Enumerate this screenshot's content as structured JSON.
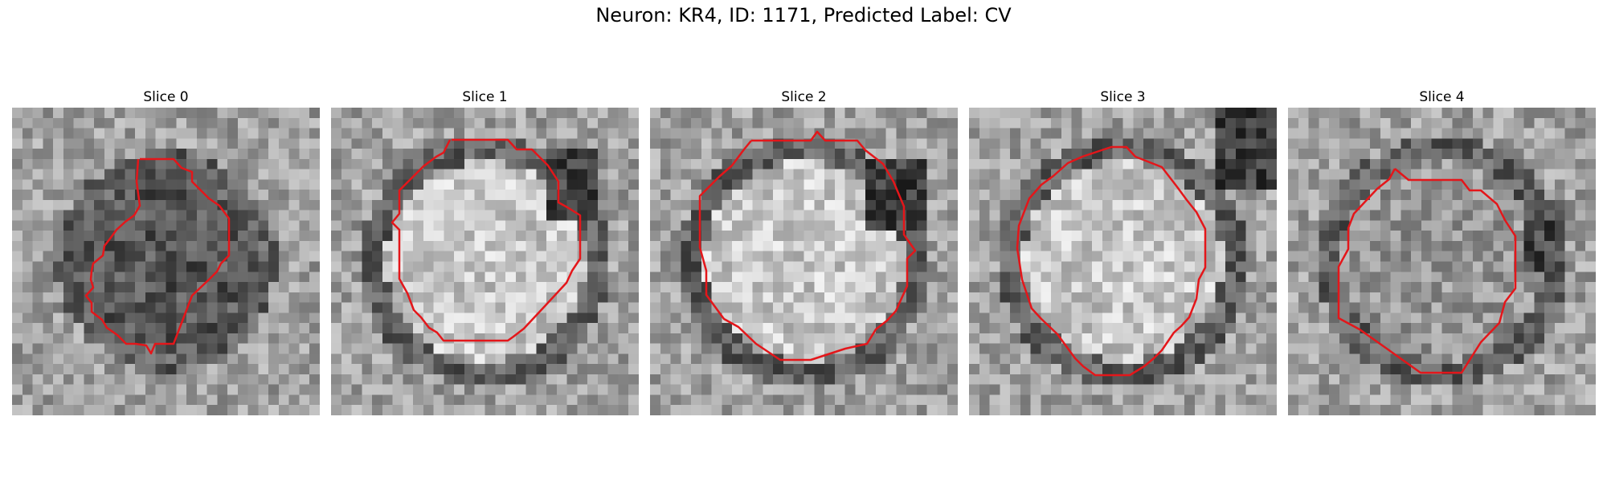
{
  "figure": {
    "title": "Neuron: KR4, ID: 1171, Predicted Label: CV"
  },
  "panels": [
    {
      "title": "Slice 0",
      "interior": "dark"
    },
    {
      "title": "Slice 1",
      "interior": "bright"
    },
    {
      "title": "Slice 2",
      "interior": "bright"
    },
    {
      "title": "Slice 3",
      "interior": "bright"
    },
    {
      "title": "Slice 4",
      "interior": "medium"
    }
  ],
  "colors": {
    "contour": "#e4161a",
    "image_colormap": "grayscale"
  }
}
